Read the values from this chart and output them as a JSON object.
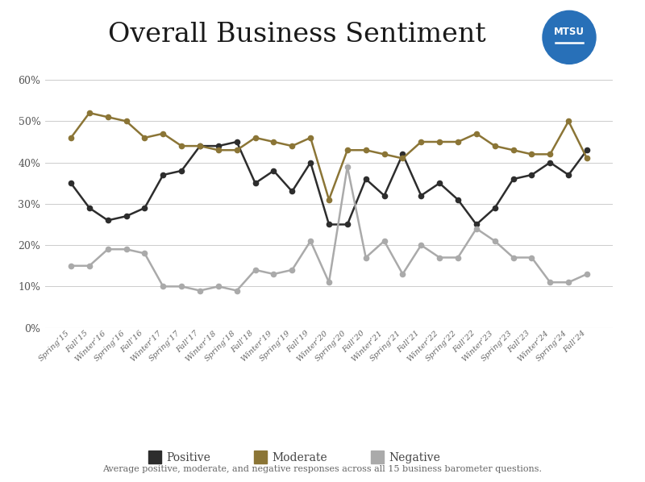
{
  "title": "Overall Business Sentiment",
  "subtitle": "Average positive, moderate, and negative responses across all 15 business barometer questions.",
  "background_color": "#ffffff",
  "labels": [
    "Spring’15",
    "Fall’15",
    "Winter’16",
    "Spring’16",
    "Fall’16",
    "Winter’17",
    "Spring’17",
    "Fall’17",
    "Winter’18",
    "Spring’18",
    "Fall’18",
    "Winter’19",
    "Spring’19",
    "Fall’19",
    "Winter’20",
    "Spring’20",
    "Fall’20",
    "Winter’21",
    "Spring’21",
    "Fall’21",
    "Winter’22",
    "Spring’22",
    "Fall’22",
    "Winter’23",
    "Spring’23",
    "Fall’23",
    "Winter’24",
    "Spring’24",
    "Fall’24"
  ],
  "positive": [
    35,
    29,
    26,
    27,
    29,
    37,
    38,
    44,
    44,
    45,
    35,
    38,
    33,
    40,
    25,
    25,
    36,
    32,
    42,
    32,
    35,
    31,
    25,
    29,
    36,
    37,
    40,
    37,
    43
  ],
  "moderate": [
    46,
    52,
    51,
    50,
    46,
    47,
    44,
    44,
    43,
    43,
    46,
    45,
    44,
    46,
    31,
    43,
    43,
    42,
    41,
    45,
    45,
    45,
    47,
    44,
    43,
    42,
    42,
    50,
    41
  ],
  "negative": [
    15,
    15,
    19,
    19,
    18,
    10,
    10,
    9,
    10,
    9,
    14,
    13,
    14,
    21,
    11,
    39,
    17,
    21,
    13,
    20,
    17,
    17,
    24,
    21,
    17,
    17,
    11,
    11,
    13
  ],
  "positive_color": "#2d2d2d",
  "moderate_color": "#8b7536",
  "negative_color": "#aaaaaa",
  "ylim": [
    0,
    63
  ],
  "yticks": [
    0,
    10,
    20,
    30,
    40,
    50,
    60
  ],
  "grid_color": "#cccccc",
  "logo_color": "#2870b8",
  "title_fontsize": 24,
  "lw": 1.8,
  "ms": 4.5
}
